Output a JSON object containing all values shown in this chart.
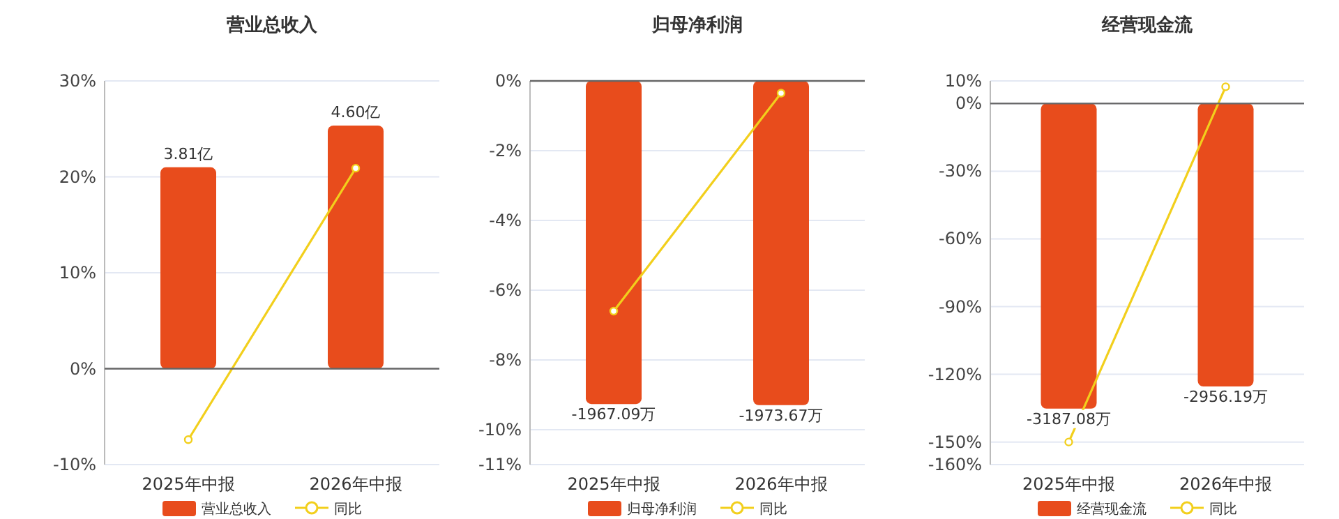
{
  "chart_data": [
    {
      "type": "bar",
      "title": "营业总收入",
      "categories": [
        "2025年中报",
        "2026年中报"
      ],
      "ylim": [
        -10,
        30
      ],
      "yticks": [
        {
          "value": -10,
          "label": "-10%"
        },
        {
          "value": 0,
          "label": "0%"
        },
        {
          "value": 10,
          "label": "10%"
        },
        {
          "value": 20,
          "label": "20%"
        },
        {
          "value": 30,
          "label": "30%"
        }
      ],
      "grid": "y",
      "legend": "bottom",
      "series": [
        {
          "name": "营业总收入",
          "axis": "y2",
          "color": "#e84c1c",
          "values": [
            3.81,
            4.6
          ],
          "value_labels": [
            "3.81亿",
            "4.60亿"
          ]
        },
        {
          "name": "同比",
          "type": "line",
          "color": "#f2cf1c",
          "marker": "circle",
          "values": [
            -7.4,
            20.9
          ]
        }
      ]
    },
    {
      "type": "bar",
      "title": "归母净利润",
      "categories": [
        "2025年中报",
        "2026年中报"
      ],
      "ylim": [
        -11,
        0
      ],
      "yticks": [
        {
          "value": -11,
          "label": "-11%"
        },
        {
          "value": -10,
          "label": "-10%"
        },
        {
          "value": -8,
          "label": "-8%"
        },
        {
          "value": -6,
          "label": "-6%"
        },
        {
          "value": -4,
          "label": "-4%"
        },
        {
          "value": -2,
          "label": "-2%"
        },
        {
          "value": 0,
          "label": "0%"
        }
      ],
      "grid": "y",
      "legend": "bottom",
      "series": [
        {
          "name": "归母净利润",
          "axis": "y2",
          "color": "#e84c1c",
          "values": [
            -1967.09,
            -1973.67
          ],
          "value_labels": [
            "-1967.09万",
            "-1973.67万"
          ]
        },
        {
          "name": "同比",
          "type": "line",
          "color": "#f2cf1c",
          "marker": "circle",
          "values": [
            -6.6,
            -0.35
          ]
        }
      ]
    },
    {
      "type": "bar",
      "title": "经营现金流",
      "categories": [
        "2025年中报",
        "2026年中报"
      ],
      "ylim": [
        -160,
        10
      ],
      "yticks": [
        {
          "value": -160,
          "label": "-160%"
        },
        {
          "value": -150,
          "label": "-150%"
        },
        {
          "value": -120,
          "label": "-120%"
        },
        {
          "value": -90,
          "label": "-90%"
        },
        {
          "value": -60,
          "label": "-60%"
        },
        {
          "value": -30,
          "label": "-30%"
        },
        {
          "value": 0,
          "label": "0%"
        },
        {
          "value": 10,
          "label": "10%"
        }
      ],
      "grid": "y",
      "legend": "bottom",
      "series": [
        {
          "name": "经营现金流",
          "axis": "y2",
          "color": "#e84c1c",
          "values": [
            -3187.08,
            -2956.19
          ],
          "value_labels": [
            "-3187.08万",
            "-2956.19万"
          ]
        },
        {
          "name": "同比",
          "type": "line",
          "color": "#f2cf1c",
          "marker": "circle",
          "values": [
            -150,
            7.4
          ]
        }
      ]
    }
  ]
}
